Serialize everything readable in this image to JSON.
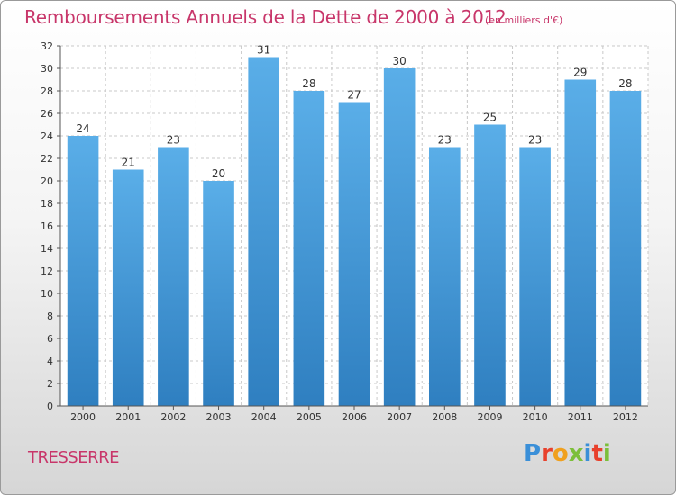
{
  "chart_data": {
    "type": "bar",
    "title": "Remboursements Annuels de la Dette de 2000 à 2012",
    "subtitle": "(en milliers d'€)",
    "xlabel": "",
    "ylabel": "",
    "categories": [
      "2000",
      "2001",
      "2002",
      "2003",
      "2004",
      "2005",
      "2006",
      "2007",
      "2008",
      "2009",
      "2010",
      "2011",
      "2012"
    ],
    "values": [
      24,
      21,
      23,
      20,
      31,
      28,
      27,
      30,
      23,
      25,
      23,
      29,
      28
    ],
    "ylim": [
      0,
      32
    ],
    "yticks": [
      0,
      2,
      4,
      6,
      8,
      10,
      12,
      14,
      16,
      18,
      20,
      22,
      24,
      26,
      28,
      30,
      32
    ],
    "grid": true,
    "legend": "none",
    "colors": {
      "bar_light": "#5aaee8",
      "bar_dark": "#2f7fc0",
      "title": "#c8366a",
      "grid": "#c8c8c8"
    }
  },
  "footer": {
    "commune": "TRESSERRE",
    "logo_text": "Proxiti"
  }
}
